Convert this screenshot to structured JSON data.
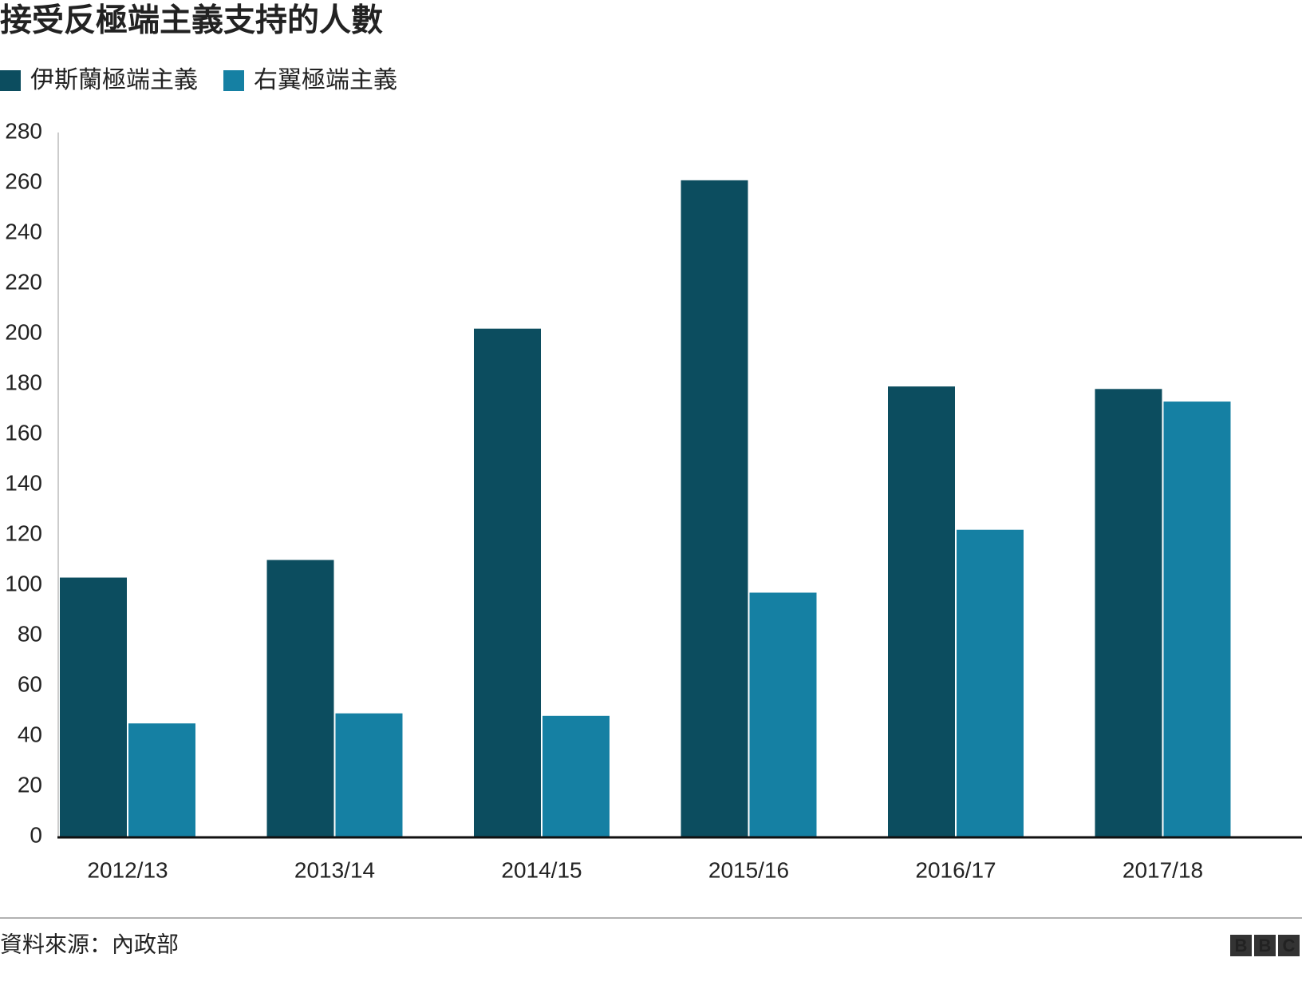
{
  "chart_data": {
    "type": "bar",
    "title": "接受反極端主義支持的人數",
    "categories": [
      "2012/13",
      "2013/14",
      "2014/15",
      "2015/16",
      "2016/17",
      "2017/18"
    ],
    "series": [
      {
        "name": "伊斯蘭極端主義",
        "color": "#0c4d5f",
        "values": [
          103,
          110,
          202,
          261,
          179,
          178
        ]
      },
      {
        "name": "右翼極端主義",
        "color": "#1580a3",
        "values": [
          45,
          49,
          48,
          97,
          122,
          173
        ]
      }
    ],
    "ylim": [
      0,
      280
    ],
    "yticks": [
      0,
      20,
      40,
      60,
      80,
      100,
      120,
      140,
      160,
      180,
      200,
      220,
      240,
      260,
      280
    ],
    "grid": false,
    "legend": "top-left",
    "source": "資料來源：內政部",
    "logo": [
      "B",
      "B",
      "C"
    ]
  }
}
